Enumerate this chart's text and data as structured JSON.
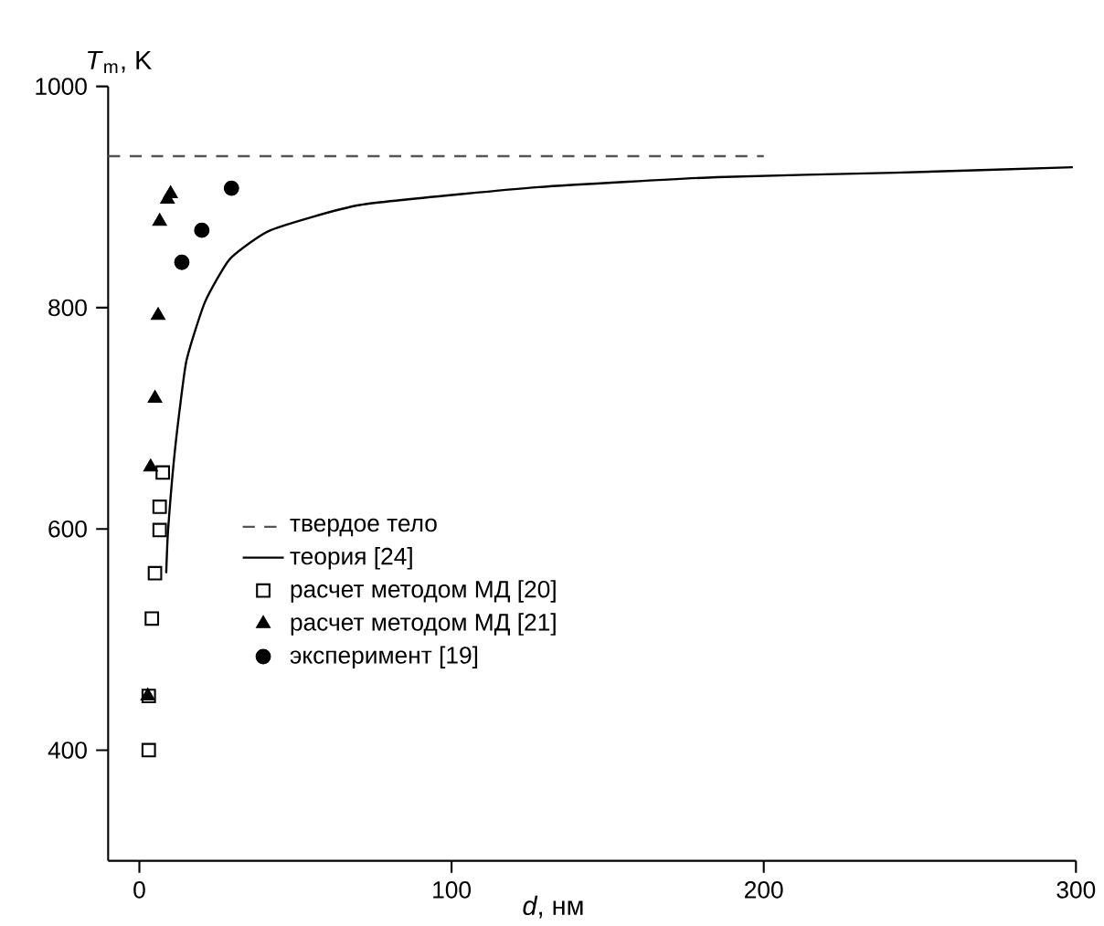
{
  "chart_data": {
    "type": "scatter",
    "xlabel": "*d*, нм",
    "ylabel": "*T*$_{m}$, K",
    "xlim": [
      -10,
      300
    ],
    "ylim": [
      300,
      1000
    ],
    "xticks": [
      0,
      100,
      200,
      300
    ],
    "yticks": [
      400,
      600,
      800,
      1000
    ],
    "legend": "bottom left",
    "grid": false,
    "series": [
      {
        "name": "твердое тело",
        "type": "line",
        "line_style": "dashed",
        "color": "#555555",
        "x": [
          -10,
          200
        ],
        "values": [
          937,
          937
        ]
      },
      {
        "name": "теория [24]",
        "type": "line",
        "line_style": "solid",
        "color": "#000000",
        "x": [
          8.6,
          9.2,
          11.5,
          15,
          21,
          29,
          42,
          71,
          128,
          185,
          242,
          299
        ],
        "values": [
          560,
          599,
          674,
          751,
          805,
          844,
          870,
          893,
          909,
          918,
          922,
          927
        ]
      },
      {
        "name": "расчет методом МД [20]",
        "type": "scatter",
        "marker": "square",
        "color": "#000000",
        "x": [
          7.5,
          6.5,
          6.5,
          5,
          4,
          3,
          3
        ],
        "values": [
          651,
          620,
          599,
          560,
          519,
          449,
          400
        ]
      },
      {
        "name": "расчет методом МД [21]",
        "type": "scatter",
        "marker": "triangle",
        "color": "#000000",
        "x": [
          3.6,
          5,
          6,
          6.5,
          9,
          10,
          2.7
        ],
        "values": [
          656,
          718,
          793,
          878,
          898,
          903,
          449
        ]
      },
      {
        "name": "эксперимент [19]",
        "type": "scatter",
        "marker": "circle",
        "color": "#000000",
        "x": [
          29.5,
          20,
          13.6
        ],
        "values": [
          908,
          870,
          841
        ]
      }
    ]
  }
}
